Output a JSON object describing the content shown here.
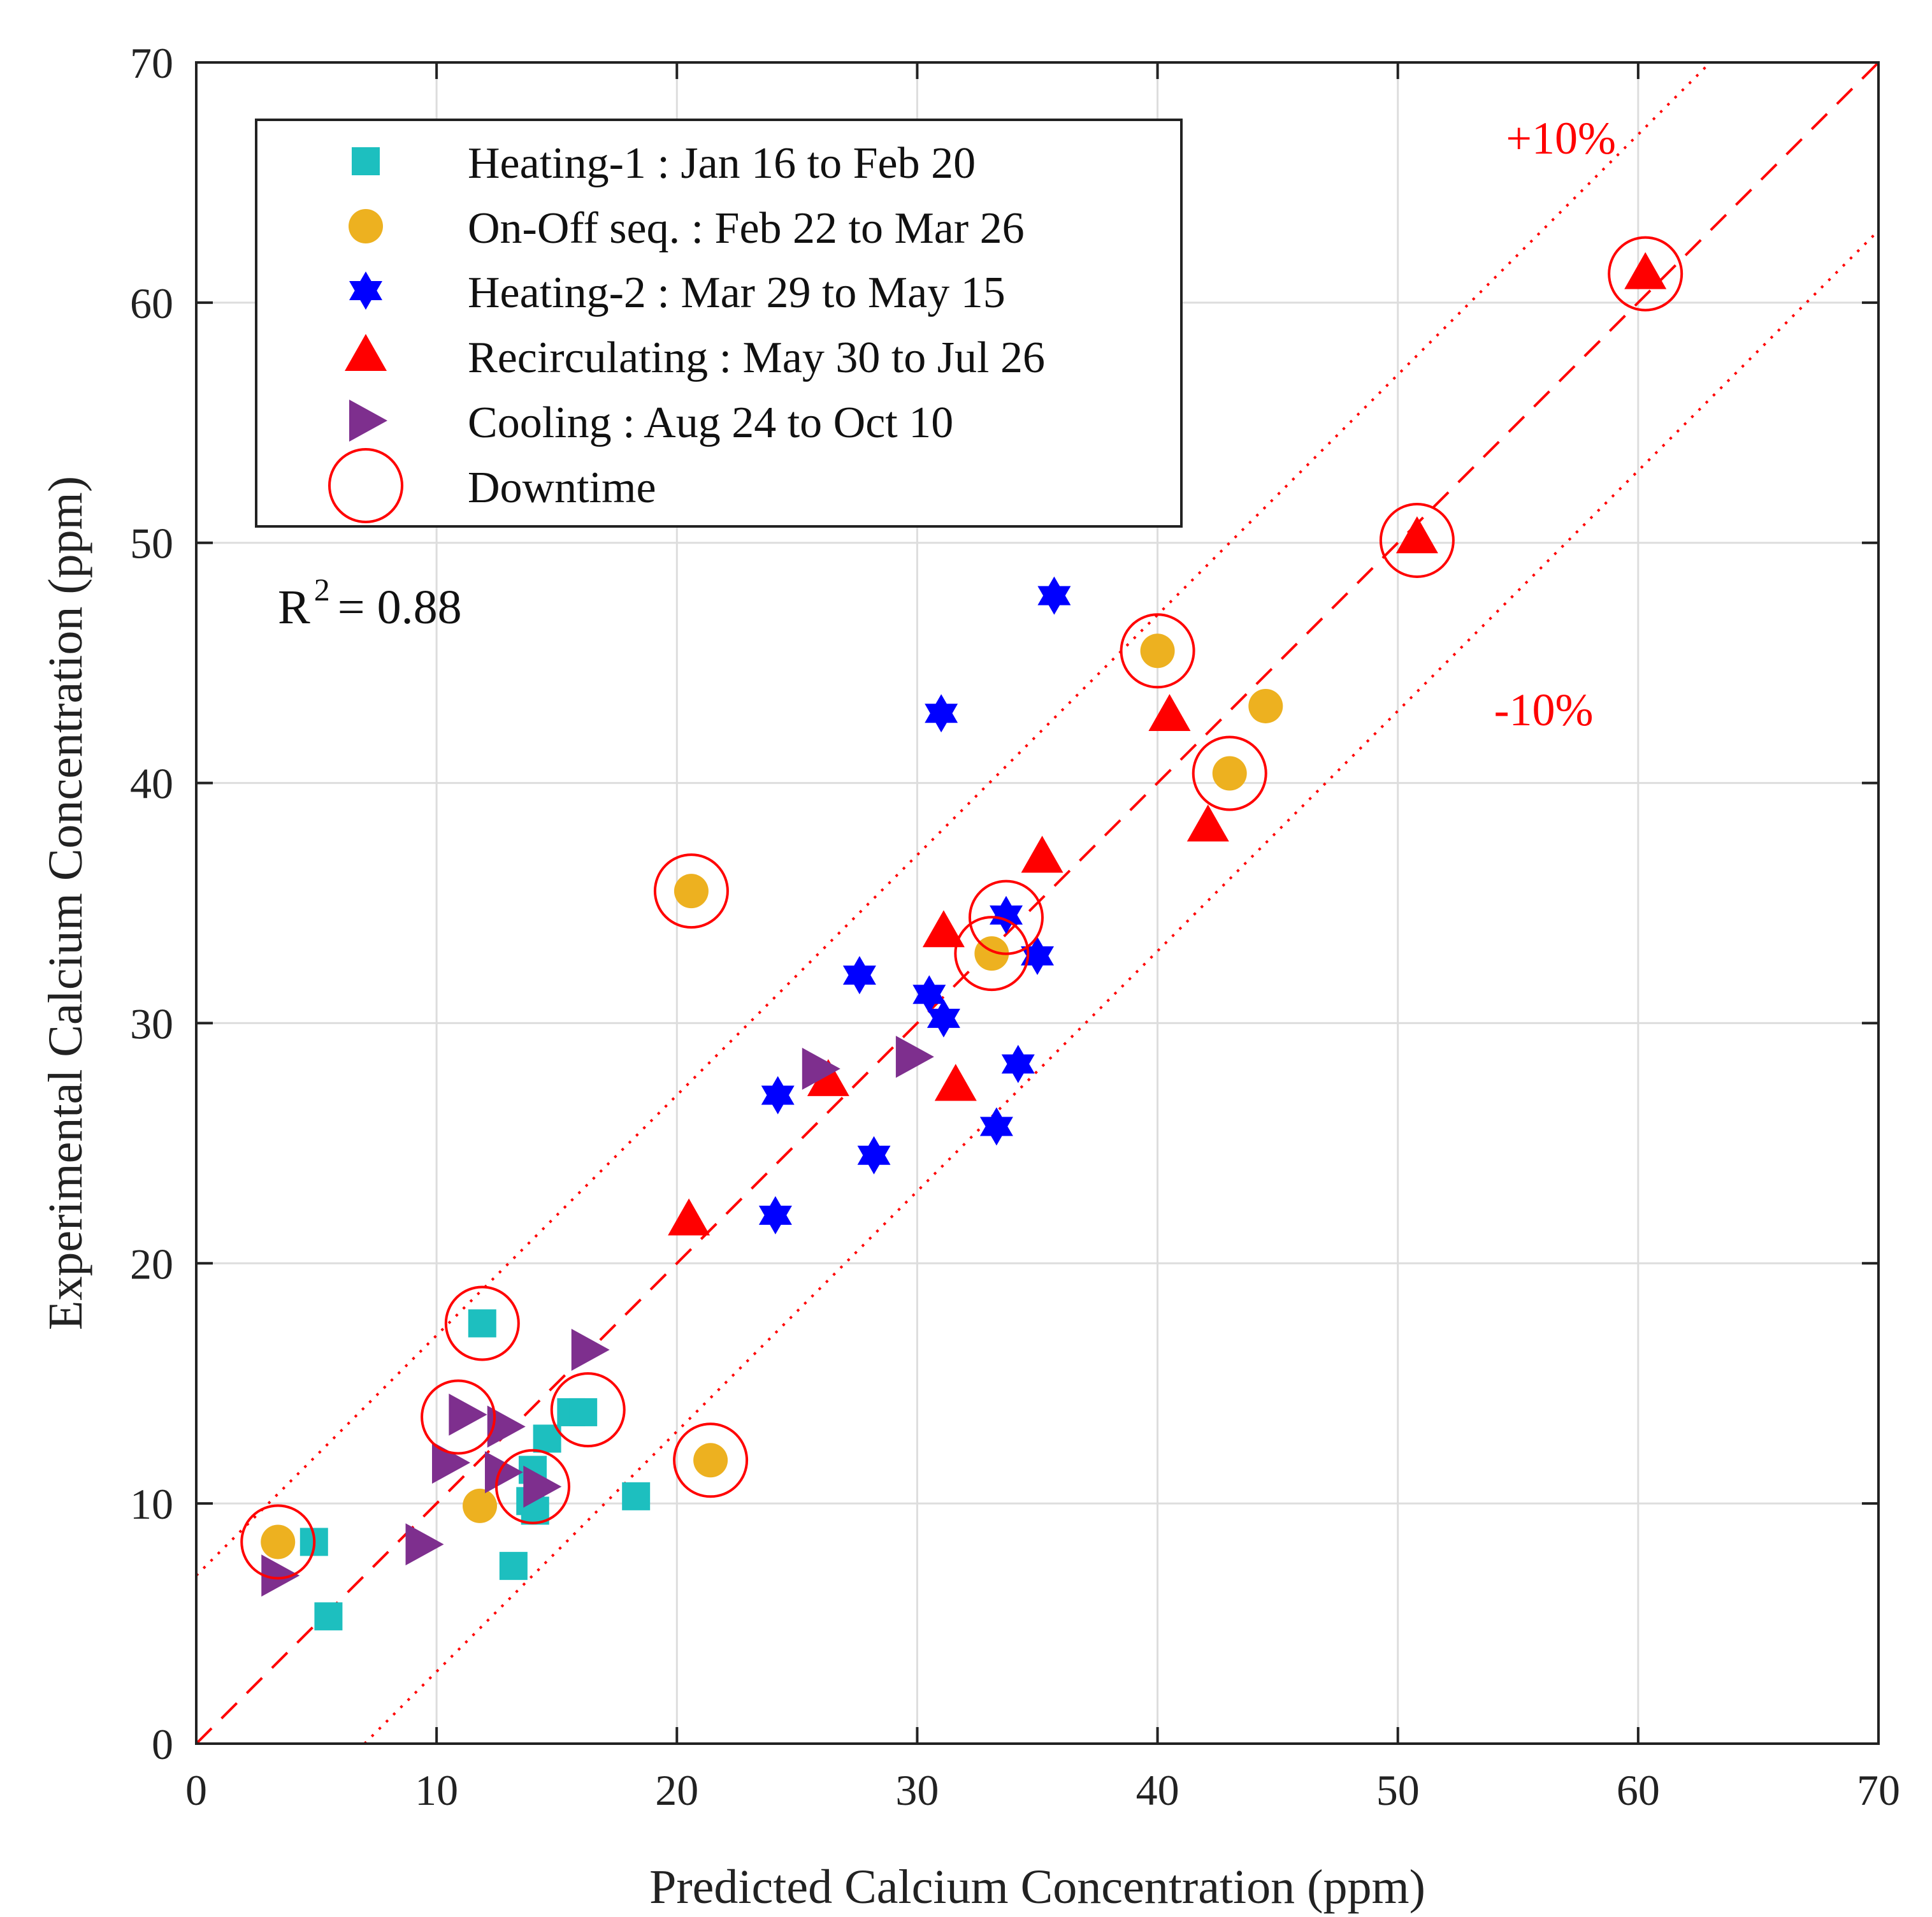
{
  "chart_data": {
    "type": "scatter",
    "xlabel": "Predicted Calcium Concentration (ppm)",
    "ylabel": "Experimental Calcium Concentration (ppm)",
    "xlim": [
      0,
      70
    ],
    "ylim": [
      0,
      70
    ],
    "xticks": [
      0,
      10,
      20,
      30,
      40,
      50,
      60,
      70
    ],
    "yticks": [
      0,
      10,
      20,
      30,
      40,
      50,
      60,
      70
    ],
    "grid": true,
    "legend_position": "top-left",
    "r2_label": "R",
    "r2_exponent": "2",
    "r2_value": "= 0.88",
    "reference_lines": [
      {
        "name": "identity",
        "style": "dashed",
        "color": "#ff0000",
        "slope": 1.0,
        "intercept": 0
      },
      {
        "name": "plus-10",
        "style": "dotted",
        "color": "#ff0000",
        "slope": 1.0,
        "intercept": 7,
        "label": "+10%"
      },
      {
        "name": "minus-10",
        "style": "dotted",
        "color": "#ff0000",
        "slope": 1.0,
        "intercept": -7,
        "label": "-10%"
      }
    ],
    "annotations": [
      {
        "text": "+10%",
        "x": 54.5,
        "y": 66.2,
        "color": "#ff0000"
      },
      {
        "text": "-10%",
        "x": 54.0,
        "y": 42.4,
        "color": "#ff0000"
      }
    ],
    "series": [
      {
        "name": "Heating-1 : Jan 16 to Feb 20",
        "marker": "square",
        "color": "#1dbfbf",
        "points": [
          [
            4.9,
            8.4
          ],
          [
            5.5,
            5.3
          ],
          [
            11.9,
            17.5
          ],
          [
            13.2,
            7.4
          ],
          [
            13.9,
            10.1
          ],
          [
            14.0,
            11.4
          ],
          [
            14.6,
            12.7
          ],
          [
            15.6,
            13.8
          ],
          [
            16.1,
            13.8
          ],
          [
            18.3,
            10.3
          ],
          [
            14.1,
            9.7
          ]
        ]
      },
      {
        "name": "On-Off seq. : Feb 22  to Mar 26",
        "marker": "circle",
        "color": "#edb120",
        "points": [
          [
            3.4,
            8.4
          ],
          [
            11.8,
            9.9
          ],
          [
            20.6,
            35.5
          ],
          [
            21.4,
            11.8
          ],
          [
            33.1,
            32.9
          ],
          [
            40.0,
            45.5
          ],
          [
            43.0,
            40.4
          ],
          [
            44.5,
            43.2
          ]
        ]
      },
      {
        "name": "Heating-2 : Mar 29 to May 15",
        "marker": "hexagram",
        "color": "#0000ff",
        "points": [
          [
            24.1,
            22.0
          ],
          [
            24.2,
            27.0
          ],
          [
            27.6,
            32.0
          ],
          [
            28.2,
            24.5
          ],
          [
            30.5,
            31.2
          ],
          [
            31.1,
            30.2
          ],
          [
            31.0,
            42.9
          ],
          [
            33.3,
            25.7
          ],
          [
            33.7,
            34.5
          ],
          [
            34.2,
            28.3
          ],
          [
            35.0,
            32.8
          ],
          [
            35.7,
            47.8
          ]
        ]
      },
      {
        "name": "Recirculating : May 30 to Jul 26",
        "marker": "triangle-up",
        "color": "#ff0000",
        "points": [
          [
            20.5,
            21.8
          ],
          [
            26.3,
            27.6
          ],
          [
            31.1,
            33.8
          ],
          [
            31.6,
            27.4
          ],
          [
            35.2,
            36.9
          ],
          [
            40.5,
            42.8
          ],
          [
            42.1,
            38.2
          ],
          [
            50.8,
            50.2
          ],
          [
            60.3,
            61.2
          ]
        ]
      },
      {
        "name": "Cooling : Aug 24 to Oct 10",
        "marker": "triangle-right",
        "color": "#7e2f8e",
        "points": [
          [
            3.4,
            7.0
          ],
          [
            9.4,
            8.3
          ],
          [
            10.5,
            11.7
          ],
          [
            11.2,
            13.7
          ],
          [
            12.7,
            11.3
          ],
          [
            12.8,
            13.2
          ],
          [
            14.3,
            10.7
          ],
          [
            16.3,
            16.4
          ],
          [
            25.9,
            28.1
          ],
          [
            29.8,
            28.6
          ]
        ]
      },
      {
        "name": "Downtime",
        "marker": "open-circle",
        "color": "#ff0000",
        "points": [
          [
            3.4,
            8.4
          ],
          [
            11.9,
            17.5
          ],
          [
            10.9,
            13.6
          ],
          [
            14.0,
            10.7
          ],
          [
            16.3,
            13.9
          ],
          [
            21.4,
            11.8
          ],
          [
            20.6,
            35.5
          ],
          [
            33.1,
            32.9
          ],
          [
            33.7,
            34.4
          ],
          [
            40.0,
            45.5
          ],
          [
            43.0,
            40.4
          ],
          [
            50.8,
            50.1
          ],
          [
            60.3,
            61.2
          ]
        ]
      }
    ]
  }
}
